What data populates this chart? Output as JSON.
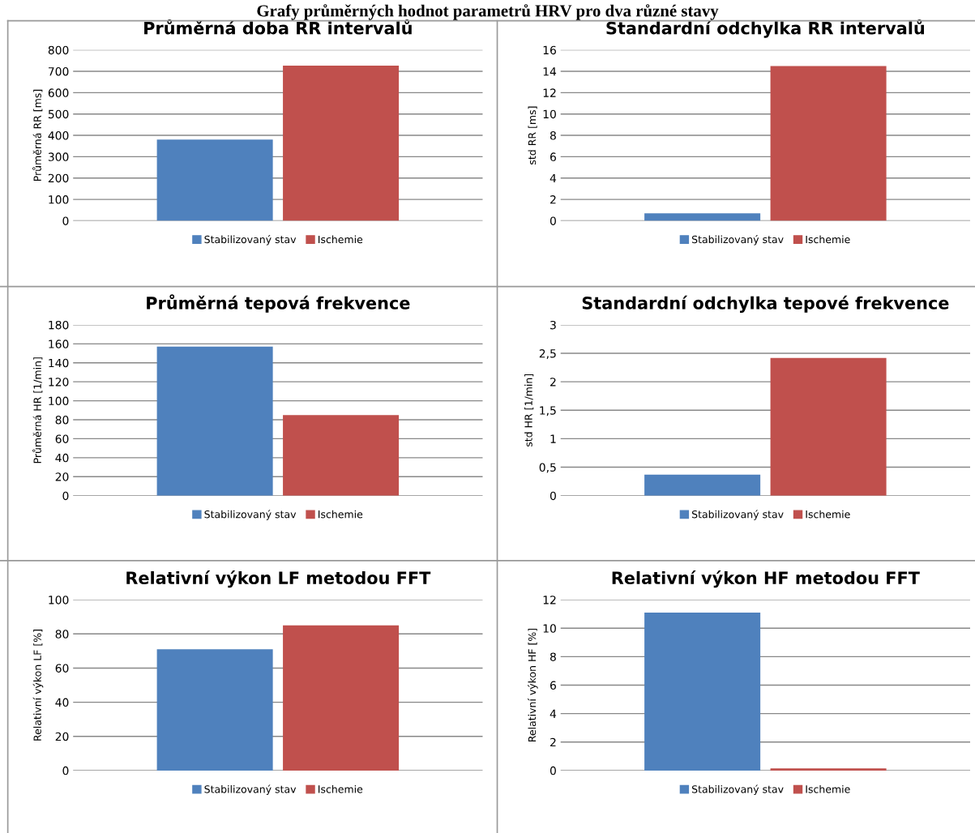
{
  "chart_data": [
    {
      "type": "bar",
      "title": "Průměrná doba RR intervalů",
      "ylabel": "Průměrná RR [ms]",
      "annotations": [
        "Grafy průměrných hodnot parametrů HRV pro dva různé stavy"
      ],
      "categories": [
        null
      ],
      "series": [
        {
          "name": "Stabilizovaný stav",
          "color": "#4f81bd",
          "values": [
            380
          ]
        },
        {
          "name": "Ischemie",
          "color": "#c0504d",
          "values": [
            727
          ]
        }
      ],
      "ylim": [
        0,
        800
      ],
      "yticks": [
        0,
        100,
        200,
        300,
        400,
        500,
        600,
        700,
        800
      ],
      "grid": "y",
      "legend": "bottom",
      "tick_labels": "y"
    },
    {
      "type": "bar",
      "title": "Standardní odchylka RR intervalů",
      "ylabel": "std RR [ms]",
      "categories": [
        null
      ],
      "series": [
        {
          "name": "Stabilizovaný stav",
          "color": "#4f81bd",
          "values": [
            0.7
          ]
        },
        {
          "name": "Ischemie",
          "color": "#c0504d",
          "values": [
            14.5
          ]
        }
      ],
      "ylim": [
        0,
        16
      ],
      "yticks": [
        0,
        2,
        4,
        6,
        8,
        10,
        12,
        14,
        16
      ],
      "grid": "y",
      "legend": "bottom",
      "tick_labels": "y"
    },
    {
      "type": "bar",
      "title": "Průměrná tepová frekvence",
      "ylabel": "Průměrná HR [1/min]",
      "categories": [
        null
      ],
      "series": [
        {
          "name": "Stabilizovaný stav",
          "color": "#4f81bd",
          "values": [
            157
          ]
        },
        {
          "name": "Ischemie",
          "color": "#c0504d",
          "values": [
            85
          ]
        }
      ],
      "ylim": [
        0,
        180
      ],
      "yticks": [
        0,
        20,
        40,
        60,
        80,
        100,
        120,
        140,
        160,
        180
      ],
      "grid": "y",
      "legend": "bottom",
      "tick_labels": "y"
    },
    {
      "type": "bar",
      "title": "Standardní odchylka tepové frekvence",
      "ylabel": "std HR [1/min]",
      "categories": [
        null
      ],
      "series": [
        {
          "name": "Stabilizovaný stav",
          "color": "#4f81bd",
          "values": [
            0.37
          ]
        },
        {
          "name": "Ischemie",
          "color": "#c0504d",
          "values": [
            2.42
          ]
        }
      ],
      "ylim": [
        0,
        3
      ],
      "yticks": [
        0,
        {
          "value": 0.5,
          "label": "0,5"
        },
        1,
        {
          "value": 1.5,
          "label": "1,5"
        },
        2,
        {
          "value": 2.5,
          "label": "2,5"
        },
        3
      ],
      "grid": "y",
      "legend": "bottom",
      "tick_labels": "y"
    },
    {
      "type": "bar",
      "title": "Relativní výkon LF metodou FFT",
      "ylabel": "Relativní výkon LF [%]",
      "categories": [
        null
      ],
      "series": [
        {
          "name": "Stabilizovaný stav",
          "color": "#4f81bd",
          "values": [
            71
          ]
        },
        {
          "name": "Ischemie",
          "color": "#c0504d",
          "values": [
            85
          ]
        }
      ],
      "ylim": [
        0,
        100
      ],
      "yticks": [
        0,
        20,
        40,
        60,
        80,
        100
      ],
      "grid": "y",
      "legend": "bottom",
      "tick_labels": "y"
    },
    {
      "type": "bar",
      "title": "Relativní výkon HF metodou FFT",
      "ylabel": "Relativní výkon HF [%]",
      "categories": [
        null
      ],
      "series": [
        {
          "name": "Stabilizovaný stav",
          "color": "#4f81bd",
          "values": [
            11.1
          ]
        },
        {
          "name": "Ischemie",
          "color": "#c0504d",
          "values": [
            0.15
          ]
        }
      ],
      "ylim": [
        0,
        12
      ],
      "yticks": [
        0,
        2,
        4,
        6,
        8,
        10,
        12
      ],
      "grid": "y",
      "legend": "bottom",
      "tick_labels": "y"
    }
  ]
}
